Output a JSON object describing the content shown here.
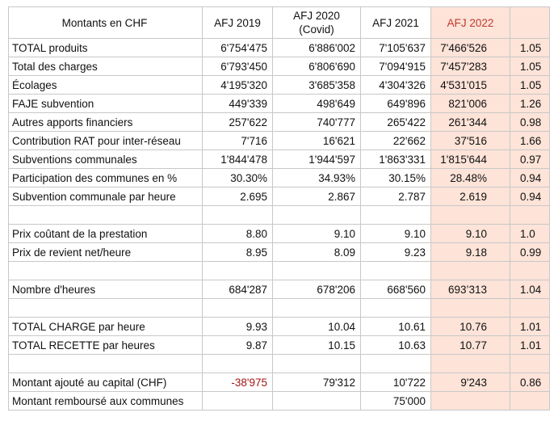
{
  "table": {
    "header": [
      "Montants en CHF",
      "AFJ 2019",
      "AFJ 2020\n(Covid)",
      "AFJ 2021",
      "AFJ 2022",
      null
    ],
    "rows": [
      [
        "TOTAL produits",
        "6'754'475",
        "6'886'002",
        "7'105'637",
        "7'466'526",
        "1.05"
      ],
      [
        "Total des charges",
        "6'793'450",
        "6'806'690",
        "7'094'915",
        "7'457'283",
        "1.05"
      ],
      [
        "Écolages",
        "4'195'320",
        "3'685'358",
        "4'304'326",
        "4'531'015",
        "1.05"
      ],
      [
        "FAJE subvention",
        "449'339",
        "498'649",
        "649'896",
        "821'006",
        "1.26"
      ],
      [
        "Autres apports financiers",
        "257'622",
        "740'777",
        "265'422",
        "261'344",
        "0.98"
      ],
      [
        "Contribution RAT pour inter-réseau",
        "7'716",
        "16'621",
        "22'662",
        "37'516",
        "1.66"
      ],
      [
        "Subventions communales",
        "1'844'478",
        "1'944'597",
        "1'863'331",
        "1'815'644",
        "0.97"
      ],
      [
        "Participation des communes en %",
        "30.30%",
        "34.93%",
        "30.15%",
        "28.48%",
        "0.94"
      ],
      [
        "Subvention communale par heure",
        "2.695",
        "2.867",
        "2.787",
        "2.619",
        "0.94"
      ],
      [
        null,
        null,
        null,
        null,
        null,
        null
      ],
      [
        "Prix coûtant de la prestation",
        "8.80",
        "9.10",
        "9.10",
        "9.10",
        "1.0"
      ],
      [
        "Prix de revient net/heure",
        "8.95",
        "8.09",
        "9.23",
        "9.18",
        "0.99"
      ],
      [
        null,
        null,
        null,
        null,
        null,
        null
      ],
      [
        "Nombre d'heures",
        "684'287",
        "678'206",
        "668'560",
        "693’313",
        "1.04"
      ],
      [
        null,
        null,
        null,
        null,
        null,
        null
      ],
      [
        "TOTAL CHARGE par heure",
        "9.93",
        "10.04",
        "10.61",
        "10.76",
        "1.01"
      ],
      [
        "TOTAL RECETTE par heures",
        "9.87",
        "10.15",
        "10.63",
        "10.77",
        "1.01"
      ],
      [
        null,
        null,
        null,
        null,
        null,
        null
      ],
      [
        "Montant ajouté au capital (CHF)",
        "-38'975",
        "79'312",
        "10'722",
        "9'243",
        "0.86"
      ],
      [
        "Montant remboursé aux communes",
        null,
        null,
        "75'000",
        null,
        null
      ]
    ]
  }
}
